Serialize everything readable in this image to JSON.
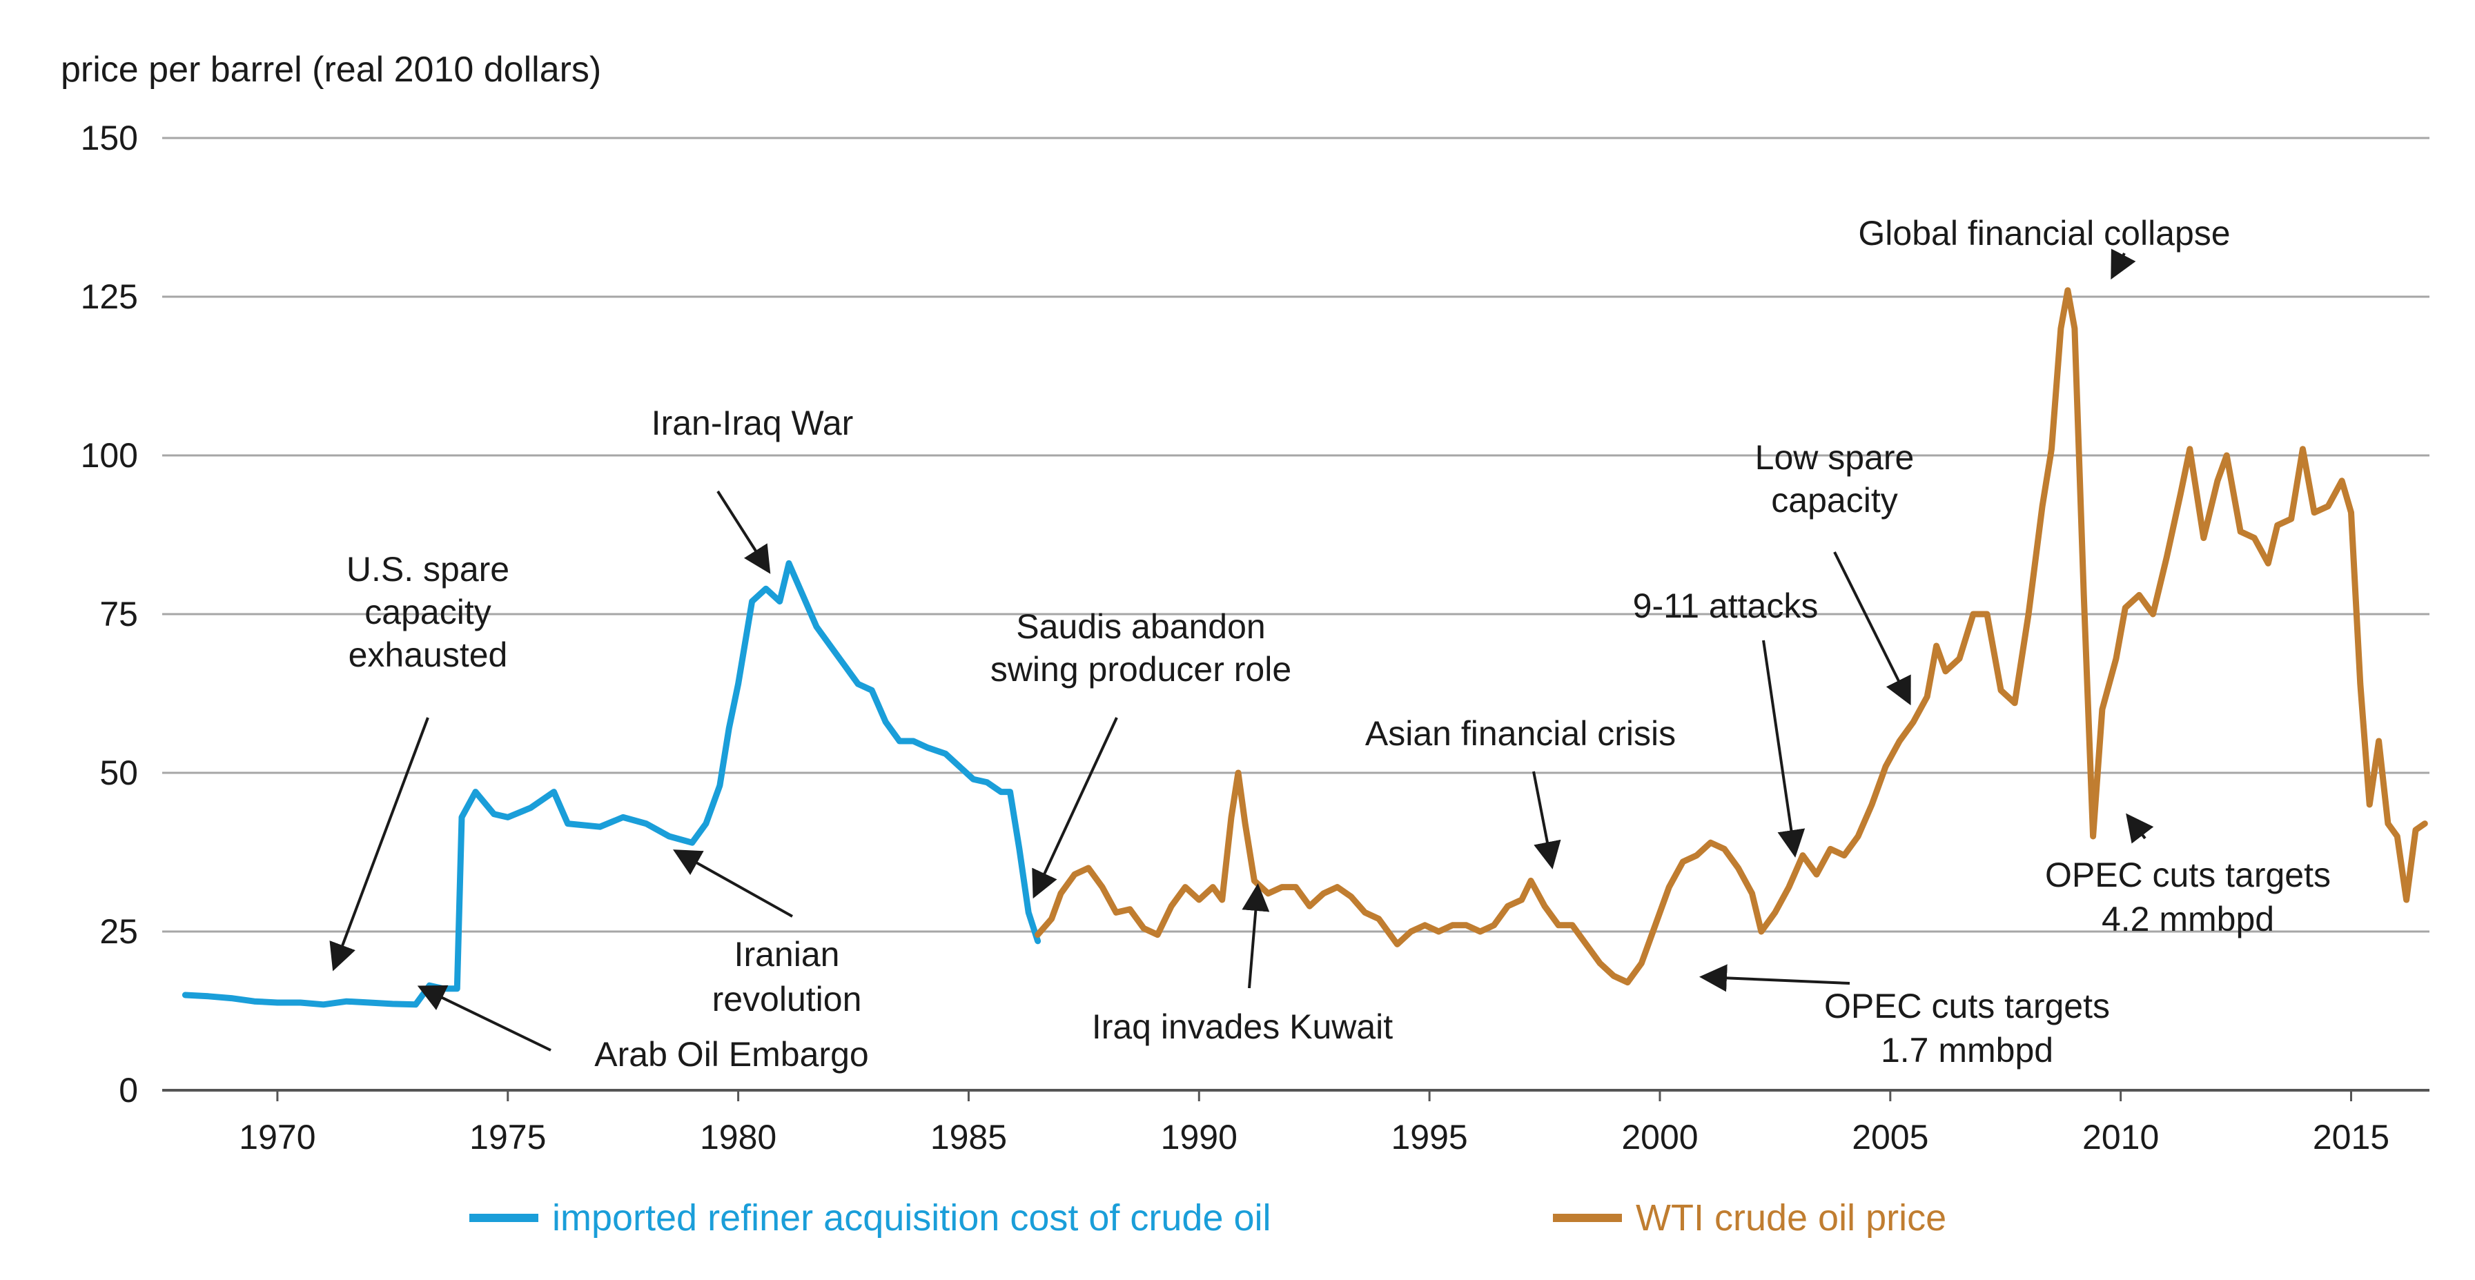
{
  "chart_data": {
    "type": "line",
    "ylabel": "price per barrel (real 2010 dollars)",
    "ylim": [
      0,
      150
    ],
    "xlim": [
      1967.5,
      2016.7
    ],
    "y_ticks": [
      {
        "value": 0,
        "label": "0"
      },
      {
        "value": 25,
        "label": "25"
      },
      {
        "value": 50,
        "label": "50"
      },
      {
        "value": 75,
        "label": "75"
      },
      {
        "value": 100,
        "label": "100"
      },
      {
        "value": 125,
        "label": "125"
      },
      {
        "value": 150,
        "label": "150"
      }
    ],
    "x_ticks": [
      {
        "value": 1970,
        "label": "1970"
      },
      {
        "value": 1975,
        "label": "1975"
      },
      {
        "value": 1980,
        "label": "1980"
      },
      {
        "value": 1985,
        "label": "1985"
      },
      {
        "value": 1990,
        "label": "1990"
      },
      {
        "value": 1995,
        "label": "1995"
      },
      {
        "value": 2000,
        "label": "2000"
      },
      {
        "value": 2005,
        "label": "2005"
      },
      {
        "value": 2010,
        "label": "2010"
      },
      {
        "value": 2015,
        "label": "2015"
      }
    ],
    "grid": true,
    "series": [
      {
        "name": "imported refiner acquisition cost of crude oil",
        "color": "#1a9ed9",
        "points": [
          [
            1968,
            15
          ],
          [
            1968.5,
            14.8
          ],
          [
            1969,
            14.5
          ],
          [
            1969.5,
            14
          ],
          [
            1970,
            13.8
          ],
          [
            1970.5,
            13.8
          ],
          [
            1971,
            13.5
          ],
          [
            1971.5,
            14
          ],
          [
            1972,
            13.8
          ],
          [
            1972.5,
            13.6
          ],
          [
            1973,
            13.5
          ],
          [
            1973.3,
            16.5
          ],
          [
            1973.6,
            16
          ],
          [
            1973.9,
            16
          ],
          [
            1974,
            43
          ],
          [
            1974.3,
            47
          ],
          [
            1974.7,
            43.5
          ],
          [
            1975,
            43
          ],
          [
            1975.5,
            44.5
          ],
          [
            1976,
            47
          ],
          [
            1976.3,
            42
          ],
          [
            1977,
            41.5
          ],
          [
            1977.5,
            43
          ],
          [
            1978,
            42
          ],
          [
            1978.5,
            40
          ],
          [
            1979,
            39
          ],
          [
            1979.3,
            42
          ],
          [
            1979.6,
            48
          ],
          [
            1979.8,
            57
          ],
          [
            1980,
            64
          ],
          [
            1980.3,
            77
          ],
          [
            1980.6,
            79
          ],
          [
            1980.9,
            77
          ],
          [
            1981.1,
            83
          ],
          [
            1981.4,
            78
          ],
          [
            1981.7,
            73
          ],
          [
            1982,
            70
          ],
          [
            1982.3,
            67
          ],
          [
            1982.6,
            64
          ],
          [
            1982.9,
            63
          ],
          [
            1983.2,
            58
          ],
          [
            1983.5,
            55
          ],
          [
            1983.8,
            55
          ],
          [
            1984.1,
            54
          ],
          [
            1984.5,
            53
          ],
          [
            1984.8,
            51
          ],
          [
            1985.1,
            49
          ],
          [
            1985.4,
            48.5
          ],
          [
            1985.7,
            47
          ],
          [
            1985.9,
            47
          ],
          [
            1986.1,
            38
          ],
          [
            1986.3,
            28
          ],
          [
            1986.5,
            23.5
          ]
        ]
      },
      {
        "name": "WTI crude oil price",
        "color": "#c07d30",
        "points": [
          [
            1986.5,
            24.5
          ],
          [
            1986.8,
            27
          ],
          [
            1987,
            31
          ],
          [
            1987.3,
            34
          ],
          [
            1987.6,
            35
          ],
          [
            1987.9,
            32
          ],
          [
            1988.2,
            28
          ],
          [
            1988.5,
            28.5
          ],
          [
            1988.8,
            25.5
          ],
          [
            1989.1,
            24.5
          ],
          [
            1989.4,
            29
          ],
          [
            1989.7,
            32
          ],
          [
            1990,
            30
          ],
          [
            1990.3,
            32
          ],
          [
            1990.5,
            30
          ],
          [
            1990.7,
            43
          ],
          [
            1990.85,
            50
          ],
          [
            1991,
            42
          ],
          [
            1991.2,
            33
          ],
          [
            1991.5,
            31
          ],
          [
            1991.8,
            32
          ],
          [
            1992.1,
            32
          ],
          [
            1992.4,
            29
          ],
          [
            1992.7,
            31
          ],
          [
            1993,
            32
          ],
          [
            1993.3,
            30.5
          ],
          [
            1993.6,
            28
          ],
          [
            1993.9,
            27
          ],
          [
            1994.1,
            25
          ],
          [
            1994.3,
            23
          ],
          [
            1994.6,
            25
          ],
          [
            1994.9,
            26
          ],
          [
            1995.2,
            25
          ],
          [
            1995.5,
            26
          ],
          [
            1995.8,
            26
          ],
          [
            1996.1,
            25
          ],
          [
            1996.4,
            26
          ],
          [
            1996.7,
            29
          ],
          [
            1997,
            30
          ],
          [
            1997.2,
            33
          ],
          [
            1997.5,
            29
          ],
          [
            1997.8,
            26
          ],
          [
            1998.1,
            26
          ],
          [
            1998.4,
            23
          ],
          [
            1998.7,
            20
          ],
          [
            1999,
            18
          ],
          [
            1999.3,
            17
          ],
          [
            1999.6,
            20
          ],
          [
            1999.9,
            26
          ],
          [
            2000.2,
            32
          ],
          [
            2000.5,
            36
          ],
          [
            2000.8,
            37
          ],
          [
            2001.1,
            39
          ],
          [
            2001.4,
            38
          ],
          [
            2001.7,
            35
          ],
          [
            2002,
            31
          ],
          [
            2002.2,
            25
          ],
          [
            2002.5,
            28
          ],
          [
            2002.8,
            32
          ],
          [
            2003.1,
            37
          ],
          [
            2003.4,
            34
          ],
          [
            2003.7,
            38
          ],
          [
            2004,
            37
          ],
          [
            2004.3,
            40
          ],
          [
            2004.6,
            45
          ],
          [
            2004.9,
            51
          ],
          [
            2005.2,
            55
          ],
          [
            2005.5,
            58
          ],
          [
            2005.8,
            62
          ],
          [
            2006,
            70
          ],
          [
            2006.2,
            66
          ],
          [
            2006.5,
            68
          ],
          [
            2006.8,
            75
          ],
          [
            2007.1,
            75
          ],
          [
            2007.4,
            63
          ],
          [
            2007.7,
            61
          ],
          [
            2008,
            75
          ],
          [
            2008.3,
            92
          ],
          [
            2008.5,
            101
          ],
          [
            2008.7,
            120
          ],
          [
            2008.85,
            126
          ],
          [
            2009,
            120
          ],
          [
            2009.2,
            78
          ],
          [
            2009.4,
            40
          ],
          [
            2009.6,
            60
          ],
          [
            2009.9,
            68
          ],
          [
            2010.1,
            76
          ],
          [
            2010.4,
            78
          ],
          [
            2010.7,
            75
          ],
          [
            2011,
            84
          ],
          [
            2011.3,
            94
          ],
          [
            2011.5,
            101
          ],
          [
            2011.8,
            87
          ],
          [
            2012.1,
            96
          ],
          [
            2012.3,
            100
          ],
          [
            2012.6,
            88
          ],
          [
            2012.9,
            87
          ],
          [
            2013.2,
            83
          ],
          [
            2013.4,
            89
          ],
          [
            2013.7,
            90
          ],
          [
            2013.95,
            101
          ],
          [
            2014.2,
            91
          ],
          [
            2014.5,
            92
          ],
          [
            2014.8,
            96
          ],
          [
            2015,
            91
          ],
          [
            2015.2,
            64
          ],
          [
            2015.4,
            45
          ],
          [
            2015.6,
            55
          ],
          [
            2015.8,
            42
          ],
          [
            2016,
            40
          ],
          [
            2016.2,
            30
          ],
          [
            2016.4,
            41
          ],
          [
            2016.6,
            42
          ]
        ]
      }
    ],
    "annotations": [
      {
        "lines": [
          "Global financial collapse"
        ]
      },
      {
        "lines": [
          "Iran-Iraq War"
        ]
      },
      {
        "lines": [
          "Low spare",
          "capacity"
        ]
      },
      {
        "lines": [
          "U.S. spare",
          "capacity",
          "exhausted"
        ]
      },
      {
        "lines": [
          "Saudis abandon",
          "swing producer role"
        ]
      },
      {
        "lines": [
          "9-11 attacks"
        ]
      },
      {
        "lines": [
          "Asian financial crisis"
        ]
      },
      {
        "lines": [
          "Iranian",
          "revolution"
        ]
      },
      {
        "lines": [
          "Arab Oil Embargo"
        ]
      },
      {
        "lines": [
          "Iraq invades Kuwait"
        ]
      },
      {
        "lines": [
          "OPEC cuts targets",
          "1.7 mmbpd"
        ]
      },
      {
        "lines": [
          "OPEC cuts targets",
          "4.2 mmbpd"
        ]
      }
    ],
    "legend": [
      {
        "label": "imported refiner acquisition cost of crude oil",
        "color": "#1a9ed9"
      },
      {
        "label": "WTI crude oil price",
        "color": "#c07d30"
      }
    ]
  }
}
